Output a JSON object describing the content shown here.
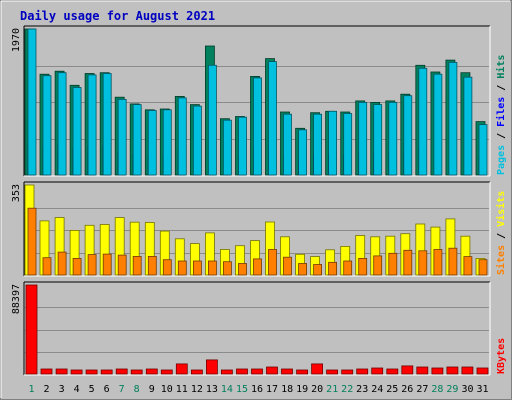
{
  "title": "Daily usage for August 2021",
  "colors": {
    "background": "#c0c0c0",
    "title": "#0000c0",
    "hits": "#00805c",
    "files": "#0000ff",
    "pages": "#00c0e0",
    "visits": "#ffff00",
    "sites": "#ff8000",
    "kbytes": "#ff0000",
    "weekend_label": "#00805c",
    "weekday_label": "#000000"
  },
  "chart_data": [
    {
      "type": "bar",
      "panel": "hits-files-pages",
      "categories": [
        "1",
        "2",
        "3",
        "4",
        "5",
        "6",
        "7",
        "8",
        "9",
        "10",
        "11",
        "12",
        "13",
        "14",
        "15",
        "16",
        "17",
        "18",
        "19",
        "20",
        "21",
        "22",
        "23",
        "24",
        "25",
        "26",
        "27",
        "28",
        "29",
        "30",
        "31"
      ],
      "ymax_label": "1970",
      "ylim": [
        0,
        1970
      ],
      "series": [
        {
          "name": "Hits",
          "values": [
            1970,
            1360,
            1400,
            1210,
            1370,
            1380,
            1050,
            960,
            880,
            890,
            1060,
            950,
            1740,
            760,
            790,
            1330,
            1570,
            850,
            630,
            840,
            860,
            850,
            1000,
            980,
            1000,
            1090,
            1480,
            1390,
            1550,
            1380,
            720
          ]
        },
        {
          "name": "Files",
          "values": [
            430,
            380,
            400,
            350,
            390,
            390,
            310,
            280,
            260,
            270,
            330,
            300,
            420,
            240,
            250,
            360,
            400,
            250,
            200,
            270,
            280,
            270,
            300,
            290,
            310,
            320,
            380,
            370,
            400,
            380,
            230
          ]
        },
        {
          "name": "Pages",
          "values": [
            1970,
            1340,
            1380,
            1180,
            1350,
            1370,
            1020,
            950,
            870,
            880,
            1040,
            930,
            1480,
            740,
            780,
            1310,
            1530,
            820,
            610,
            820,
            860,
            830,
            980,
            950,
            980,
            1070,
            1440,
            1360,
            1520,
            1320,
            680
          ]
        }
      ],
      "legend": [
        "Pages",
        "Files",
        "Hits"
      ]
    },
    {
      "type": "bar",
      "panel": "visits-sites",
      "categories": [
        "1",
        "2",
        "3",
        "4",
        "5",
        "6",
        "7",
        "8",
        "9",
        "10",
        "11",
        "12",
        "13",
        "14",
        "15",
        "16",
        "17",
        "18",
        "19",
        "20",
        "21",
        "22",
        "23",
        "24",
        "25",
        "26",
        "27",
        "28",
        "29",
        "30",
        "31"
      ],
      "ymax_label": "353",
      "ylim": [
        0,
        353
      ],
      "series": [
        {
          "name": "Visits",
          "values": [
            353,
            212,
            225,
            175,
            195,
            198,
            225,
            207,
            206,
            172,
            142,
            123,
            165,
            100,
            115,
            135,
            208,
            150,
            81,
            72,
            99,
            112,
            155,
            150,
            152,
            162,
            200,
            188,
            220,
            152,
            65
          ]
        },
        {
          "name": "Sites",
          "values": [
            262,
            68,
            90,
            65,
            80,
            82,
            78,
            73,
            73,
            60,
            55,
            55,
            55,
            52,
            45,
            63,
            100,
            70,
            45,
            41,
            50,
            55,
            65,
            75,
            85,
            97,
            95,
            100,
            105,
            72,
            60
          ]
        }
      ],
      "legend": [
        "Sites",
        "Visits"
      ]
    },
    {
      "type": "bar",
      "panel": "kbytes",
      "categories": [
        "1",
        "2",
        "3",
        "4",
        "5",
        "6",
        "7",
        "8",
        "9",
        "10",
        "11",
        "12",
        "13",
        "14",
        "15",
        "16",
        "17",
        "18",
        "19",
        "20",
        "21",
        "22",
        "23",
        "24",
        "25",
        "26",
        "27",
        "28",
        "29",
        "30",
        "31"
      ],
      "ymax_label": "88397",
      "ylim": [
        0,
        88397
      ],
      "series": [
        {
          "name": "KBytes",
          "values": [
            88397,
            5000,
            5000,
            4000,
            4000,
            4000,
            5000,
            4000,
            5000,
            4000,
            10000,
            4000,
            14000,
            4000,
            5000,
            5000,
            7000,
            5000,
            4000,
            10000,
            4000,
            4000,
            5000,
            6000,
            5000,
            8000,
            7000,
            6000,
            7000,
            7000,
            6000
          ]
        }
      ],
      "legend": [
        "KBytes"
      ]
    }
  ]
}
